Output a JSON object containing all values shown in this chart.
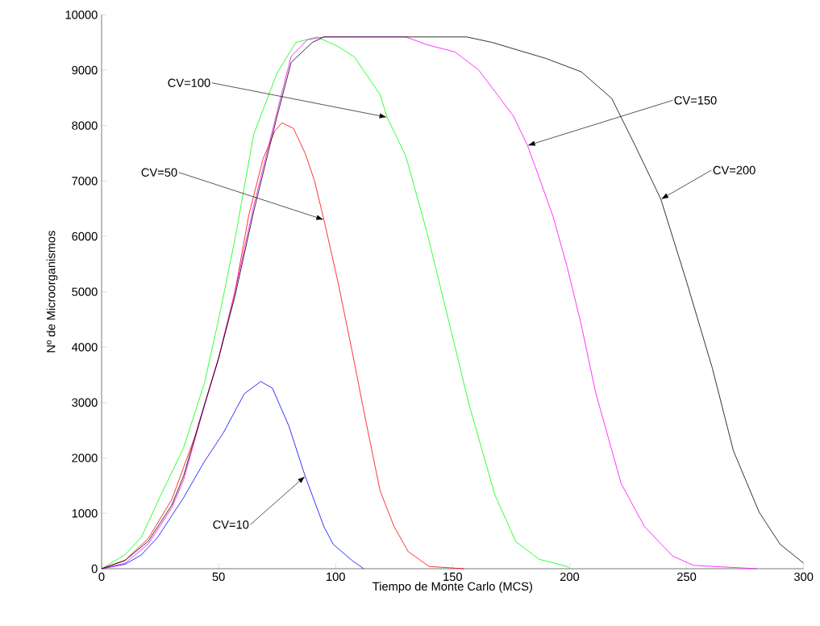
{
  "chart_data": {
    "type": "line",
    "xlabel": "Tiempo de Monte Carlo (MCS)",
    "ylabel": "Nº de Microorganismos",
    "xlim": [
      0,
      300
    ],
    "ylim": [
      0,
      10000
    ],
    "xticks": [
      0,
      50,
      100,
      150,
      200,
      250,
      300
    ],
    "yticks": [
      0,
      1000,
      2000,
      3000,
      4000,
      5000,
      6000,
      7000,
      8000,
      9000,
      10000
    ],
    "series": [
      {
        "color": "#0000ff",
        "x": [
          0,
          10,
          17,
          24,
          35,
          44,
          52,
          61,
          68,
          73,
          80,
          87,
          95,
          99,
          107,
          112
        ],
        "values": [
          0,
          80,
          250,
          570,
          1280,
          1940,
          2450,
          3160,
          3380,
          3260,
          2580,
          1670,
          760,
          440,
          150,
          0
        ]
      },
      {
        "color": "#ff0000",
        "x": [
          0,
          10,
          20,
          30,
          40,
          50,
          57,
          63,
          69,
          74,
          77,
          82,
          87,
          91,
          95,
          101,
          107,
          113,
          119,
          125,
          131,
          140,
          155
        ],
        "values": [
          0,
          150,
          550,
          1250,
          2400,
          3800,
          5000,
          6400,
          7400,
          7900,
          8050,
          7950,
          7500,
          7000,
          6300,
          5180,
          3940,
          2650,
          1410,
          760,
          310,
          40,
          0
        ]
      },
      {
        "color": "#00ff00",
        "x": [
          0,
          10,
          17,
          25,
          35,
          44,
          50,
          57,
          65,
          75,
          83,
          92,
          101,
          108,
          119,
          122,
          130,
          139,
          148,
          157,
          168,
          177,
          187,
          199,
          200
        ],
        "values": [
          0,
          250,
          570,
          1300,
          2180,
          3360,
          4500,
          5950,
          7840,
          8950,
          9500,
          9600,
          9430,
          9240,
          8560,
          8150,
          7450,
          6080,
          4530,
          2970,
          1340,
          490,
          170,
          40,
          0
        ]
      },
      {
        "color": "#ff00ff",
        "x": [
          0,
          10,
          20,
          30,
          35,
          44,
          50,
          57,
          65,
          75,
          81,
          88,
          95,
          130,
          139,
          151,
          161,
          168,
          176,
          182,
          187,
          193,
          199,
          205,
          211,
          222,
          232,
          244,
          253,
          280
        ],
        "values": [
          0,
          100,
          450,
          1100,
          1600,
          2950,
          3800,
          5000,
          6550,
          8250,
          9250,
          9550,
          9600,
          9600,
          9460,
          9330,
          9010,
          8620,
          8170,
          7640,
          7060,
          6350,
          5440,
          4400,
          3200,
          1540,
          760,
          230,
          60,
          0
        ]
      },
      {
        "color": "#000000",
        "x": [
          0,
          10,
          20,
          30,
          35,
          44,
          50,
          57,
          65,
          75,
          81,
          90,
          95,
          156,
          167,
          190,
          205,
          218,
          228,
          239,
          250,
          261,
          270,
          281,
          290,
          300
        ],
        "values": [
          0,
          150,
          500,
          1150,
          1670,
          2970,
          3800,
          4920,
          6450,
          8170,
          9140,
          9500,
          9600,
          9600,
          9500,
          9210,
          8970,
          8490,
          7640,
          6670,
          5180,
          3620,
          2130,
          1020,
          440,
          100
        ]
      }
    ],
    "annotations": [
      {
        "text": "CV=10",
        "x": 87,
        "y": 1670
      },
      {
        "text": "CV=50",
        "x": 95,
        "y": 6300
      },
      {
        "text": "CV=100",
        "x": 122,
        "y": 8150
      },
      {
        "text": "CV=150",
        "x": 182,
        "y": 7640
      },
      {
        "text": "CV=200",
        "x": 239,
        "y": 6670
      }
    ]
  }
}
